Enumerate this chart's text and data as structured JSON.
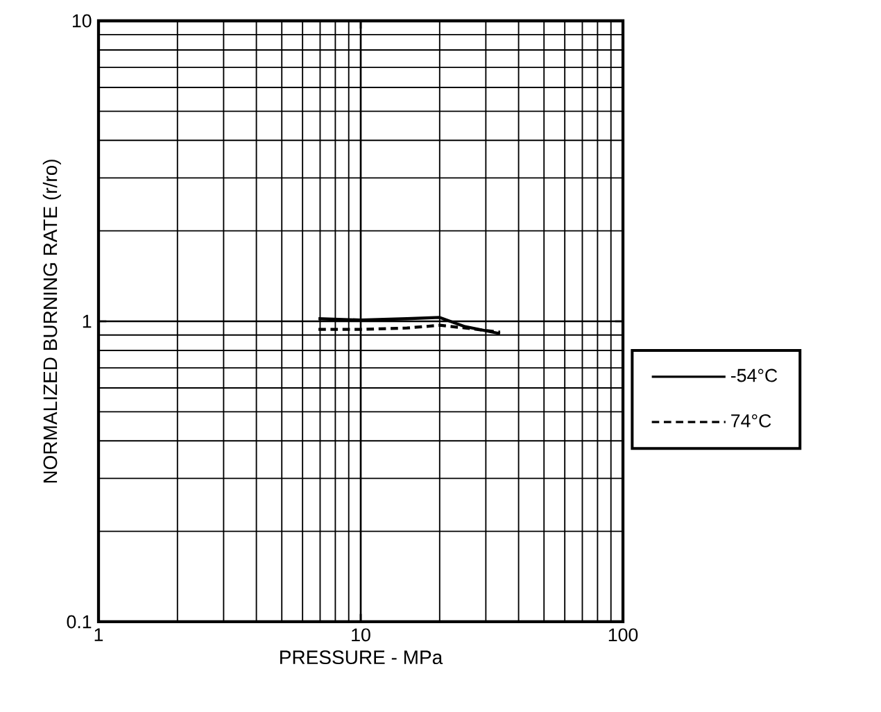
{
  "chart_data": {
    "type": "line",
    "xlabel": "PRESSURE - MPa",
    "ylabel": "NORMALIZED BURNING RATE (r/ro)",
    "log": "xy",
    "grid": true,
    "legend": "right",
    "marker": "none",
    "xlim": [
      1,
      100
    ],
    "xticks": [
      1,
      10,
      100
    ],
    "ylim": [
      0.1,
      10
    ],
    "yticks": [
      0.1,
      1,
      10
    ],
    "series": [
      {
        "name": "-54°C",
        "color": "#000000",
        "line_style": "solid",
        "x": [
          6.9,
          10,
          15,
          20,
          25,
          34
        ],
        "values": [
          1.02,
          1.01,
          1.02,
          1.03,
          0.96,
          0.91
        ]
      },
      {
        "name": "74°C",
        "color": "#000000",
        "line_style": "dashed",
        "x": [
          6.9,
          10,
          15,
          20,
          25,
          34
        ],
        "values": [
          0.94,
          0.94,
          0.95,
          0.97,
          0.95,
          0.92
        ]
      }
    ]
  }
}
